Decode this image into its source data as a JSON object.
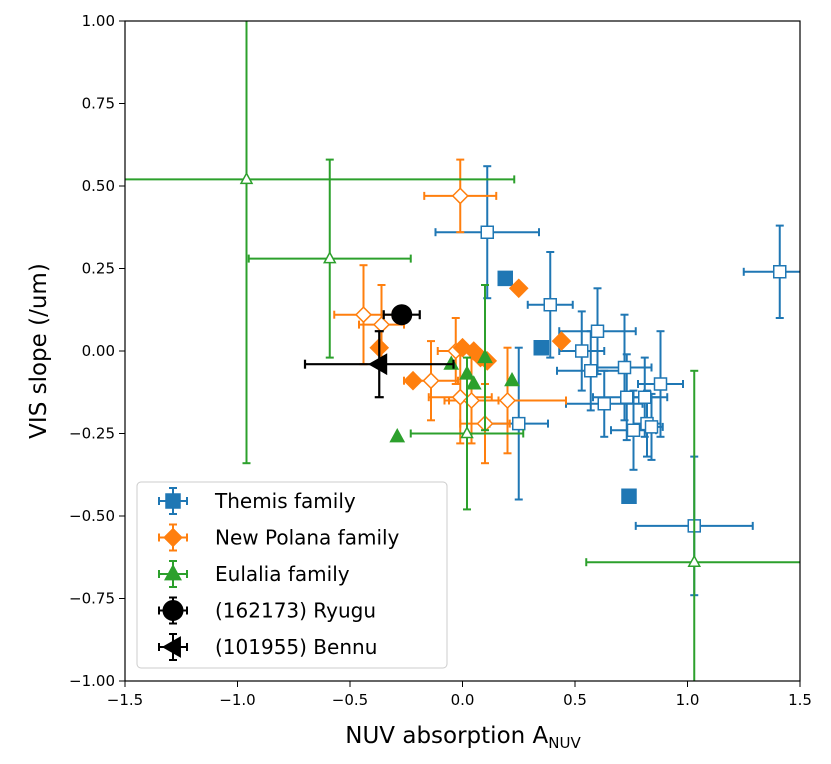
{
  "chart_data": {
    "type": "scatter",
    "title": "",
    "xlabel": "NUV absorption A",
    "xlabel_sub": "NUV",
    "ylabel": "VIS slope (/um)",
    "xlim": [
      -1.5,
      1.5
    ],
    "ylim": [
      -1.0,
      1.0
    ],
    "xticks": [
      -1.5,
      -1.0,
      -0.5,
      0.0,
      0.5,
      1.0,
      1.5
    ],
    "yticks": [
      -1.0,
      -0.75,
      -0.5,
      -0.25,
      0.0,
      0.25,
      0.5,
      0.75,
      1.0
    ],
    "xtick_labels": [
      "−1.5",
      "−1.0",
      "−0.5",
      "0.0",
      "0.5",
      "1.0",
      "1.5"
    ],
    "ytick_labels": [
      "−1.00",
      "−0.75",
      "−0.50",
      "−0.25",
      "0.00",
      "0.25",
      "0.50",
      "0.75",
      "1.00"
    ],
    "grid": false,
    "legend_position": "lower-left",
    "series": [
      {
        "name": "Themis family",
        "color": "#1f77b4",
        "marker": "square",
        "points": [
          {
            "x": 1.41,
            "y": 0.24,
            "xerr": 0.16,
            "yerr": 0.14,
            "filled": false
          },
          {
            "x": 0.11,
            "y": 0.36,
            "xerr": 0.23,
            "yerr": 0.2,
            "filled": false
          },
          {
            "x": 0.19,
            "y": 0.22,
            "xerr": 0.0,
            "yerr": 0.0,
            "filled": true
          },
          {
            "x": 0.39,
            "y": 0.14,
            "xerr": 0.1,
            "yerr": 0.16,
            "filled": false
          },
          {
            "x": 0.35,
            "y": 0.01,
            "xerr": 0.0,
            "yerr": 0.0,
            "filled": true
          },
          {
            "x": 0.6,
            "y": 0.06,
            "xerr": 0.17,
            "yerr": 0.13,
            "filled": false
          },
          {
            "x": 0.53,
            "y": 0.0,
            "xerr": 0.1,
            "yerr": 0.12,
            "filled": false
          },
          {
            "x": 0.57,
            "y": -0.06,
            "xerr": 0.15,
            "yerr": 0.12,
            "filled": false
          },
          {
            "x": 0.72,
            "y": -0.05,
            "xerr": 0.12,
            "yerr": 0.16,
            "filled": false
          },
          {
            "x": 0.63,
            "y": -0.16,
            "xerr": 0.17,
            "yerr": 0.1,
            "filled": false
          },
          {
            "x": 0.73,
            "y": -0.14,
            "xerr": 0.15,
            "yerr": 0.13,
            "filled": false
          },
          {
            "x": 0.81,
            "y": -0.14,
            "xerr": 0.1,
            "yerr": 0.12,
            "filled": false
          },
          {
            "x": 0.88,
            "y": -0.1,
            "xerr": 0.1,
            "yerr": 0.16,
            "filled": false
          },
          {
            "x": 0.76,
            "y": -0.24,
            "xerr": 0.1,
            "yerr": 0.12,
            "filled": false
          },
          {
            "x": 0.82,
            "y": -0.22,
            "xerr": 0.06,
            "yerr": 0.1,
            "filled": false
          },
          {
            "x": 0.84,
            "y": -0.23,
            "xerr": 0.05,
            "yerr": 0.1,
            "filled": false
          },
          {
            "x": 0.25,
            "y": -0.22,
            "xerr": 0.13,
            "yerr": 0.23,
            "filled": false
          },
          {
            "x": 0.74,
            "y": -0.44,
            "xerr": 0.0,
            "yerr": 0.0,
            "filled": true
          },
          {
            "x": 1.03,
            "y": -0.53,
            "xerr": 0.26,
            "yerr": 0.21,
            "filled": false
          }
        ]
      },
      {
        "name": "New Polana family",
        "color": "#ff7f0e",
        "marker": "diamond",
        "points": [
          {
            "x": -0.01,
            "y": 0.47,
            "xerr": 0.16,
            "yerr": 0.11,
            "filled": false
          },
          {
            "x": 0.25,
            "y": 0.19,
            "xerr": 0.0,
            "yerr": 0.0,
            "filled": true
          },
          {
            "x": -0.44,
            "y": 0.11,
            "xerr": 0.13,
            "yerr": 0.15,
            "filled": false
          },
          {
            "x": -0.37,
            "y": 0.01,
            "xerr": 0.0,
            "yerr": 0.0,
            "filled": true
          },
          {
            "x": 0.44,
            "y": 0.03,
            "xerr": 0.0,
            "yerr": 0.0,
            "filled": true
          },
          {
            "x": -0.36,
            "y": 0.08,
            "xerr": 0.1,
            "yerr": 0.12,
            "filled": false
          },
          {
            "x": -0.03,
            "y": 0.0,
            "xerr": 0.08,
            "yerr": 0.1,
            "filled": false
          },
          {
            "x": 0.0,
            "y": 0.01,
            "xerr": 0.0,
            "yerr": 0.0,
            "filled": true
          },
          {
            "x": 0.05,
            "y": 0.0,
            "xerr": 0.0,
            "yerr": 0.0,
            "filled": true
          },
          {
            "x": 0.08,
            "y": -0.02,
            "xerr": 0.0,
            "yerr": 0.0,
            "filled": true
          },
          {
            "x": 0.11,
            "y": -0.03,
            "xerr": 0.0,
            "yerr": 0.0,
            "filled": true
          },
          {
            "x": -0.22,
            "y": -0.09,
            "xerr": 0.0,
            "yerr": 0.0,
            "filled": true
          },
          {
            "x": -0.14,
            "y": -0.09,
            "xerr": 0.12,
            "yerr": 0.12,
            "filled": false
          },
          {
            "x": -0.01,
            "y": -0.14,
            "xerr": 0.14,
            "yerr": 0.14,
            "filled": false
          },
          {
            "x": 0.04,
            "y": -0.15,
            "xerr": 0.12,
            "yerr": 0.13,
            "filled": false
          },
          {
            "x": 0.2,
            "y": -0.15,
            "xerr": 0.26,
            "yerr": 0.16,
            "filled": false
          },
          {
            "x": 0.1,
            "y": -0.22,
            "xerr": 0.11,
            "yerr": 0.12,
            "filled": false
          }
        ]
      },
      {
        "name": "Eulalia family",
        "color": "#2ca02c",
        "marker": "triangle",
        "points": [
          {
            "x": -0.96,
            "y": 0.52,
            "xerr": 1.19,
            "yerr": 0.86,
            "filled": false
          },
          {
            "x": -0.59,
            "y": 0.28,
            "xerr": 0.36,
            "yerr": 0.3,
            "filled": false
          },
          {
            "x": -0.05,
            "y": -0.04,
            "xerr": 0.0,
            "yerr": 0.0,
            "filled": true
          },
          {
            "x": 0.02,
            "y": -0.07,
            "xerr": 0.0,
            "yerr": 0.0,
            "filled": true
          },
          {
            "x": 0.05,
            "y": -0.1,
            "xerr": 0.0,
            "yerr": 0.0,
            "filled": true
          },
          {
            "x": 0.1,
            "y": -0.02,
            "xerr": 0.0,
            "yerr": 0.22,
            "filled": true
          },
          {
            "x": 0.22,
            "y": -0.09,
            "xerr": 0.0,
            "yerr": 0.0,
            "filled": true
          },
          {
            "x": -0.29,
            "y": -0.26,
            "xerr": 0.0,
            "yerr": 0.0,
            "filled": true
          },
          {
            "x": 0.02,
            "y": -0.25,
            "xerr": 0.25,
            "yerr": 0.23,
            "filled": false
          },
          {
            "x": 1.03,
            "y": -0.64,
            "xerr": 0.48,
            "yerr": 0.58,
            "filled": false
          }
        ]
      },
      {
        "name": "(162173) Ryugu",
        "color": "#000000",
        "marker": "circle",
        "points": [
          {
            "x": -0.27,
            "y": 0.11,
            "xerr": 0.08,
            "yerr": 0.02,
            "filled": true
          }
        ]
      },
      {
        "name": "(101955) Bennu",
        "color": "#000000",
        "marker": "triangle-left",
        "points": [
          {
            "x": -0.37,
            "y": -0.04,
            "xerr": 0.33,
            "yerr": 0.1,
            "filled": true
          }
        ]
      }
    ]
  }
}
